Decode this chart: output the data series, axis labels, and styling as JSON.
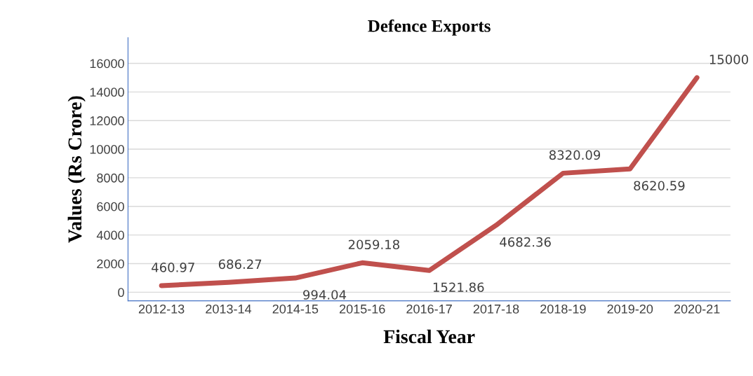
{
  "chart_data": {
    "type": "line",
    "title": "Defence Exports",
    "xlabel": "Fiscal Year",
    "ylabel": "Values (Rs Crore)",
    "categories": [
      "2012-13",
      "2013-14",
      "2014-15",
      "2015-16",
      "2016-17",
      "2017-18",
      "2018-19",
      "2019-20",
      "2020-21"
    ],
    "series": [
      {
        "color": "#c0504d",
        "values": [
          460.97,
          686.27,
          994.04,
          2059.18,
          1521.86,
          4682.36,
          8320.09,
          8620.59,
          15000
        ]
      }
    ],
    "ylim": [
      -600,
      17800
    ],
    "yticks": [
      0,
      2000,
      4000,
      6000,
      8000,
      10000,
      12000,
      14000,
      16000
    ],
    "grid": "y",
    "data_labels": true,
    "line_style": "solid",
    "marker": "none"
  }
}
